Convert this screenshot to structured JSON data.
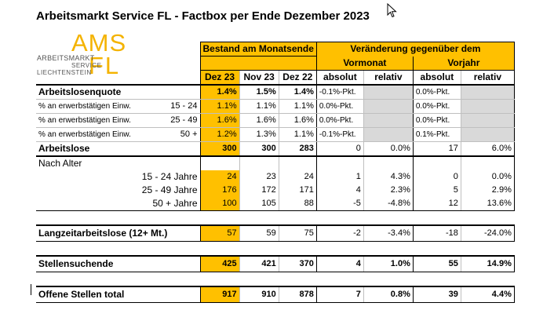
{
  "title": "Arbeitsmarkt Service FL - Factbox per Ende Dezember 2023",
  "logo": {
    "ams": "AMS",
    "fl": "FL",
    "line1": "ARBEITSMARKT",
    "line2": "SERVICE",
    "line3": "LIECHTENSTEIN"
  },
  "header": {
    "bestand": "Bestand am Monatsende",
    "veraenderung": "Veränderung gegenüber dem",
    "vormonat": "Vormonat",
    "vorjahr": "Vorjahr",
    "cols": [
      "Dez 23",
      "Nov 23",
      "Dez 22",
      "absolut",
      "relativ",
      "absolut",
      "relativ"
    ]
  },
  "quote": {
    "label": "Arbeitslosenquote",
    "values": [
      "1.4%",
      "1.5%",
      "1.4%",
      "-0.1%-Pkt.",
      "",
      "0.0%-Pkt.",
      ""
    ],
    "rows": [
      {
        "label": "% an erwerbstätigen Einw.",
        "range": "15 - 24",
        "values": [
          "1.1%",
          "1.1%",
          "1.1%",
          "0.0%-Pkt.",
          "",
          "0.0%-Pkt.",
          ""
        ]
      },
      {
        "label": "% an erwerbstätigen Einw.",
        "range": "25 - 49",
        "values": [
          "1.6%",
          "1.6%",
          "1.6%",
          "0.0%-Pkt.",
          "",
          "0.0%-Pkt.",
          ""
        ]
      },
      {
        "label": "% an erwerbstätigen Einw.",
        "range": "50 +",
        "values": [
          "1.2%",
          "1.3%",
          "1.1%",
          "-0.1%-Pkt.",
          "",
          "0.1%-Pkt.",
          ""
        ]
      }
    ]
  },
  "arbeitslose": {
    "label": "Arbeitslose",
    "values": [
      "300",
      "300",
      "283",
      "0",
      "0.0%",
      "17",
      "6.0%"
    ]
  },
  "alter": {
    "label": "Nach Alter",
    "rows": [
      {
        "label": "15 - 24 Jahre",
        "values": [
          "24",
          "23",
          "24",
          "1",
          "4.3%",
          "0",
          "0.0%"
        ]
      },
      {
        "label": "25 - 49 Jahre",
        "values": [
          "176",
          "172",
          "171",
          "4",
          "2.3%",
          "5",
          "2.9%"
        ]
      },
      {
        "label": "50 + Jahre",
        "values": [
          "100",
          "105",
          "88",
          "-5",
          "-4.8%",
          "12",
          "13.6%"
        ]
      }
    ]
  },
  "langzeit": {
    "label": "Langzeitarbeitslose (12+ Mt.)",
    "values": [
      "57",
      "59",
      "75",
      "-2",
      "-3.4%",
      "-18",
      "-24.0%"
    ]
  },
  "stellensuchende": {
    "label": "Stellensuchende",
    "values": [
      "425",
      "421",
      "370",
      "4",
      "1.0%",
      "55",
      "14.9%"
    ]
  },
  "offene": {
    "label": "Offene Stellen total",
    "values": [
      "917",
      "910",
      "878",
      "7",
      "0.8%",
      "39",
      "4.4%"
    ]
  }
}
